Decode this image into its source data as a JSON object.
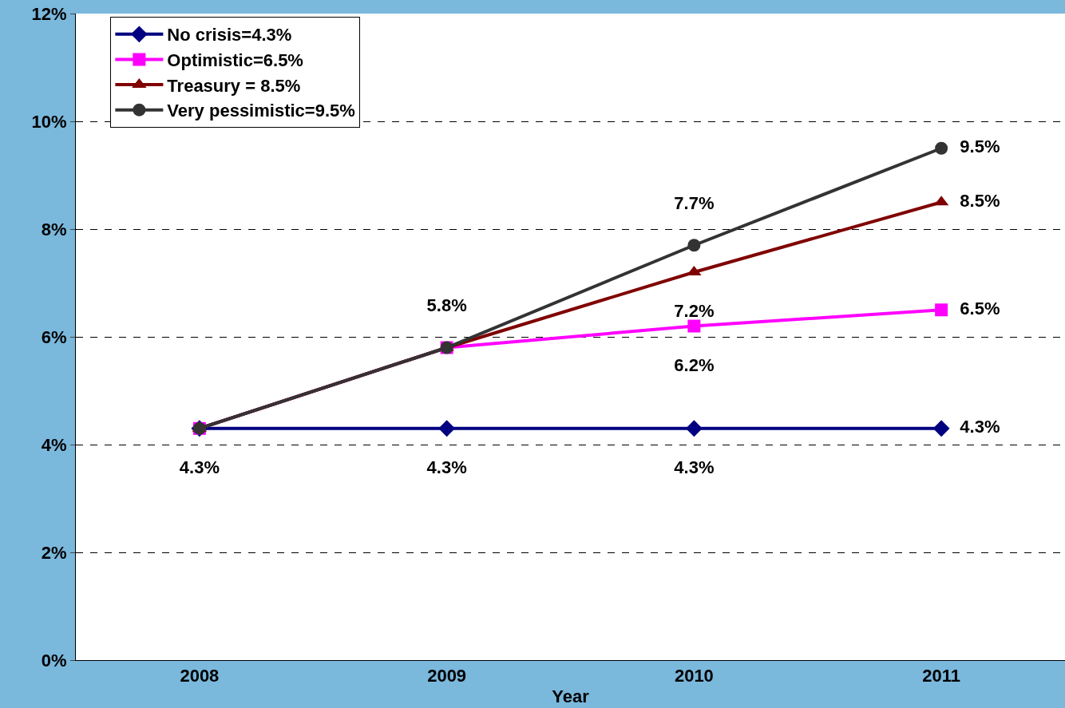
{
  "chart_data": {
    "type": "line",
    "xlabel": "Year",
    "categories": [
      "2008",
      "2009",
      "2010",
      "2011"
    ],
    "ylim": [
      0,
      12
    ],
    "yticks": [
      {
        "value": 0,
        "label": "0%"
      },
      {
        "value": 2,
        "label": "2%"
      },
      {
        "value": 4,
        "label": "4%"
      },
      {
        "value": 6,
        "label": "6%"
      },
      {
        "value": 8,
        "label": "8%"
      },
      {
        "value": 10,
        "label": "10%"
      },
      {
        "value": 12,
        "label": "12%"
      }
    ],
    "grid": "y",
    "legend": "top left",
    "series": [
      {
        "name": "No crisis=4.3%",
        "color": "#000080",
        "marker": "diamond",
        "values": [
          4.3,
          4.3,
          4.3,
          4.3
        ],
        "value_labels": [
          "4.3%",
          "4.3%",
          "4.3%",
          "4.3%"
        ]
      },
      {
        "name": "Optimistic=6.5%",
        "color": "#ff00ff",
        "marker": "square",
        "values": [
          4.3,
          5.8,
          6.2,
          6.5
        ],
        "value_labels": [
          null,
          null,
          "6.2%",
          "6.5%"
        ]
      },
      {
        "name": "Treasury = 8.5%",
        "color": "#800000",
        "marker": "triangle",
        "values": [
          4.3,
          5.8,
          7.2,
          8.5
        ],
        "value_labels": [
          null,
          null,
          "7.2%",
          "8.5%"
        ]
      },
      {
        "name": "Very pessimistic=9.5%",
        "color": "#333333",
        "marker": "circle",
        "values": [
          4.3,
          5.8,
          7.7,
          9.5
        ],
        "value_labels": [
          null,
          "5.8%",
          "7.7%",
          "9.5%"
        ]
      }
    ]
  }
}
